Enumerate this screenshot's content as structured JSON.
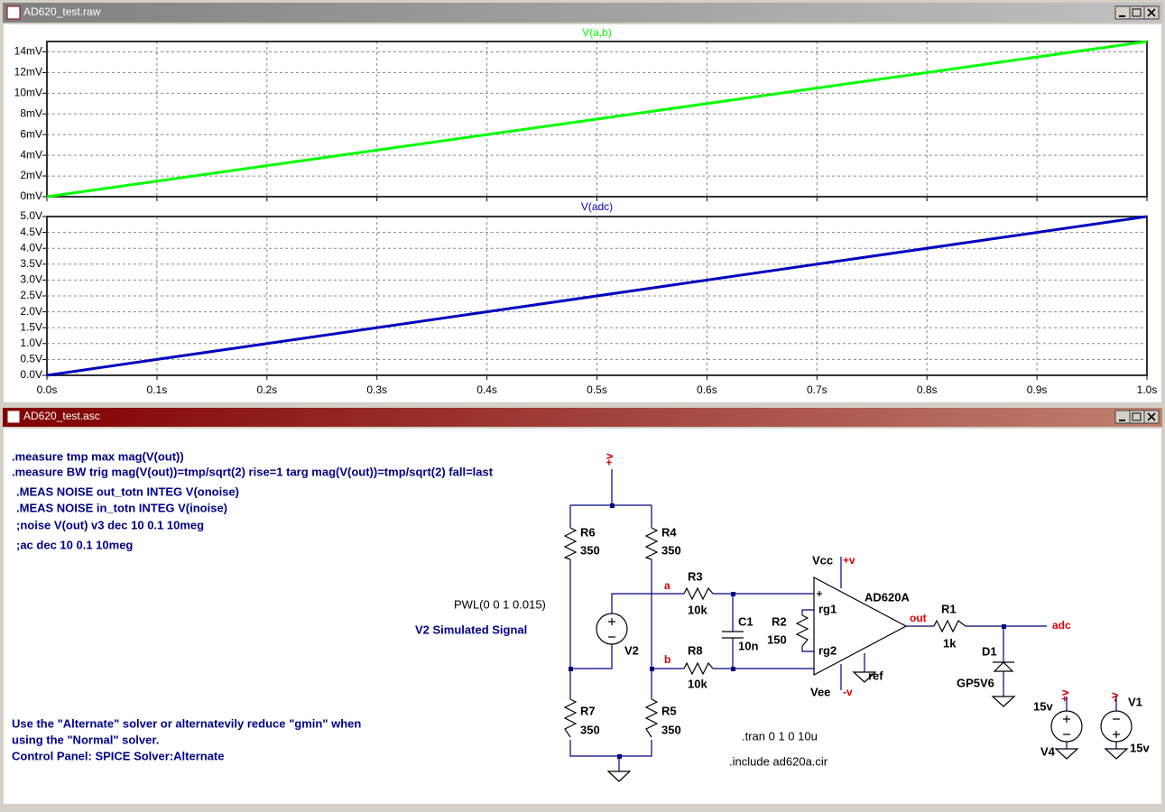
{
  "windows": [
    {
      "title": "AD620_test.raw"
    },
    {
      "title": "AD620_test.asc"
    }
  ],
  "chart_data": [
    {
      "type": "line",
      "title": "V(a,b)",
      "color": "#00ff00",
      "x": [
        0,
        1
      ],
      "values": [
        0,
        15
      ],
      "xlim": [
        0,
        1
      ],
      "xticks": [
        0,
        0.1,
        0.2,
        0.3,
        0.4,
        0.5,
        0.6,
        0.7,
        0.8,
        0.9,
        1
      ],
      "ylim": [
        0,
        15
      ],
      "yticks": [
        {
          "value": 0,
          "label": "0mV"
        },
        {
          "value": 2,
          "label": "2mV"
        },
        {
          "value": 4,
          "label": "4mV"
        },
        {
          "value": 6,
          "label": "6mV"
        },
        {
          "value": 8,
          "label": "8mV"
        },
        {
          "value": 10,
          "label": "10mV"
        },
        {
          "value": 12,
          "label": "12mV"
        },
        {
          "value": 14,
          "label": "14mV"
        }
      ],
      "grid": true
    },
    {
      "type": "line",
      "title": "V(adc)",
      "color": "#0000c0",
      "x": [
        0,
        1
      ],
      "values": [
        0,
        5
      ],
      "xlim": [
        0,
        1
      ],
      "xticks": [
        {
          "value": 0,
          "label": "0.0s"
        },
        {
          "value": 0.1,
          "label": "0.1s"
        },
        {
          "value": 0.2,
          "label": "0.2s"
        },
        {
          "value": 0.3,
          "label": "0.3s"
        },
        {
          "value": 0.4,
          "label": "0.4s"
        },
        {
          "value": 0.5,
          "label": "0.5s"
        },
        {
          "value": 0.6,
          "label": "0.6s"
        },
        {
          "value": 0.7,
          "label": "0.7s"
        },
        {
          "value": 0.8,
          "label": "0.8s"
        },
        {
          "value": 0.9,
          "label": "0.9s"
        },
        {
          "value": 1,
          "label": "1.0s"
        }
      ],
      "ylim": [
        0,
        5
      ],
      "yticks": [
        {
          "value": 0,
          "label": "0.0V"
        },
        {
          "value": 0.5,
          "label": "0.5V"
        },
        {
          "value": 1,
          "label": "1.0V"
        },
        {
          "value": 1.5,
          "label": "1.5V"
        },
        {
          "value": 2,
          "label": "2.0V"
        },
        {
          "value": 2.5,
          "label": "2.5V"
        },
        {
          "value": 3,
          "label": "3.0V"
        },
        {
          "value": 3.5,
          "label": "3.5V"
        },
        {
          "value": 4,
          "label": "4.0V"
        },
        {
          "value": 4.5,
          "label": "4.5V"
        },
        {
          "value": 5,
          "label": "5.0V"
        }
      ],
      "grid": true
    }
  ],
  "schematic": {
    "directives": [
      ".measure tmp max mag(V(out))",
      ".measure BW trig mag(V(out))=tmp/sqrt(2) rise=1 targ mag(V(out))=tmp/sqrt(2) fall=last",
      ".MEAS NOISE out_totn INTEG V(onoise)",
      ".MEAS NOISE in_totn INTEG V(inoise)",
      ";noise V(out) v3 dec 10 0.1 10meg",
      ";ac dec 10 0.1 10meg"
    ],
    "notes": [
      "Use the \"Alternate\" solver or alternatevily reduce \"gmin\" when",
      "using the \"Normal\" solver.",
      "Control Panel:  SPICE Solver:Alternate"
    ],
    "comment": "V2 Simulated Signal",
    "tran": ".tran 0 1 0 10u",
    "include": ".include ad620a.cir",
    "labels": [
      "PWL(0 0 1 0.015)",
      "R6",
      "350",
      "R4",
      "350",
      "R3",
      "10k",
      "C1",
      "10n",
      "R2",
      "150",
      "V2",
      "R8",
      "10k",
      "R7",
      "350",
      "R5",
      "350",
      "Vcc",
      "Vee",
      "AD620A",
      "rg1",
      "rg2",
      "ref",
      "R1",
      "1k",
      "D1",
      "GP5V6",
      "15v",
      "V4",
      "V1",
      "15v"
    ],
    "nets": [
      "+v",
      "a",
      "b",
      "+v",
      "-v",
      "out",
      "adc",
      "+v",
      "-v"
    ]
  }
}
